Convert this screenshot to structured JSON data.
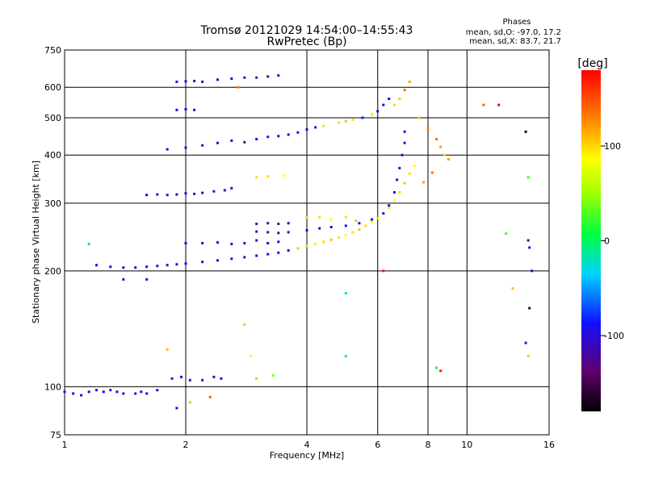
{
  "chart_data": {
    "type": "scatter",
    "title": "Tromsø 20121029 14:54:00–14:55:43",
    "subtitle": "RwPretec (Bp)",
    "xlabel": "Frequency [MHz]",
    "ylabel": "Stationary phase Virtual Height [km]",
    "x_scale": "log",
    "y_scale": "log",
    "xlim": [
      1,
      16
    ],
    "ylim": [
      75,
      750
    ],
    "x_ticks": [
      1,
      2,
      4,
      6,
      8,
      10,
      16
    ],
    "x_tick_labels": [
      "1",
      "2",
      "4",
      "6",
      "8",
      "10",
      "16"
    ],
    "y_ticks": [
      75,
      100,
      200,
      300,
      400,
      500,
      600,
      750
    ],
    "y_tick_labels": [
      "75",
      "100",
      "200",
      "300",
      "400",
      "500",
      "600",
      "750"
    ],
    "grid": true,
    "phase_box": {
      "title": "Phases",
      "line1": "mean, sd,O: -97.0, 17.2",
      "line2": "mean, sd,X: 83.7, 21.7"
    },
    "colorbar": {
      "label": "[deg]",
      "range": [
        -180,
        180
      ],
      "ticks": [
        100,
        0,
        -100
      ],
      "tick_labels": [
        "100",
        "0",
        "-100"
      ]
    },
    "series": [
      {
        "points": [
          [
            1.0,
            97,
            -100
          ],
          [
            1.05,
            96,
            -100
          ],
          [
            1.1,
            95,
            -100
          ],
          [
            1.15,
            97,
            -100
          ],
          [
            1.2,
            98,
            -100
          ],
          [
            1.25,
            97,
            -100
          ],
          [
            1.3,
            98,
            -100
          ],
          [
            1.35,
            97,
            -100
          ],
          [
            1.4,
            96,
            -100
          ],
          [
            1.5,
            96,
            -100
          ],
          [
            1.55,
            97,
            -100
          ],
          [
            1.6,
            96,
            -100
          ],
          [
            1.7,
            98,
            -100
          ],
          [
            1.85,
            105,
            -100
          ],
          [
            1.95,
            106,
            -100
          ],
          [
            2.05,
            104,
            -100
          ],
          [
            2.2,
            104,
            -100
          ],
          [
            2.35,
            106,
            -100
          ],
          [
            2.45,
            105,
            -100
          ]
        ]
      },
      {
        "points": [
          [
            1.2,
            207,
            -100
          ],
          [
            1.3,
            205,
            -100
          ],
          [
            1.4,
            204,
            -100
          ],
          [
            1.5,
            204,
            -100
          ],
          [
            1.6,
            205,
            -100
          ],
          [
            1.7,
            206,
            -100
          ],
          [
            1.8,
            207,
            -100
          ],
          [
            1.9,
            208,
            -100
          ],
          [
            2.0,
            209,
            -100
          ],
          [
            2.2,
            211,
            -100
          ],
          [
            2.4,
            213,
            -100
          ],
          [
            2.6,
            215,
            -100
          ],
          [
            2.8,
            217,
            -100
          ],
          [
            3.0,
            219,
            -100
          ],
          [
            3.2,
            221,
            -100
          ],
          [
            3.4,
            223,
            -95
          ],
          [
            3.6,
            226,
            -100
          ],
          [
            3.8,
            229,
            50
          ],
          [
            4.0,
            232,
            100
          ],
          [
            4.2,
            235,
            80
          ],
          [
            4.4,
            238,
            100
          ],
          [
            4.6,
            241,
            110
          ],
          [
            4.8,
            244,
            100
          ],
          [
            5.0,
            248,
            90
          ],
          [
            5.2,
            252,
            100
          ],
          [
            5.4,
            256,
            110
          ],
          [
            5.6,
            262,
            100
          ],
          [
            5.8,
            268,
            90
          ],
          [
            6.0,
            274,
            100
          ],
          [
            6.2,
            282,
            110
          ],
          [
            6.4,
            292,
            100
          ],
          [
            6.6,
            305,
            90
          ],
          [
            6.8,
            320,
            100
          ],
          [
            7.0,
            338,
            110
          ],
          [
            7.2,
            358,
            100
          ],
          [
            7.4,
            375,
            90
          ]
        ]
      },
      {
        "points": [
          [
            2.0,
            236,
            -100
          ],
          [
            2.2,
            236,
            -100
          ],
          [
            2.4,
            237,
            -100
          ],
          [
            2.6,
            235,
            -100
          ],
          [
            2.8,
            236,
            -100
          ],
          [
            3.0,
            240,
            -100
          ],
          [
            3.2,
            236,
            -100
          ],
          [
            3.4,
            238,
            -100
          ]
        ]
      },
      {
        "points": [
          [
            3.0,
            265,
            -120
          ],
          [
            3.2,
            266,
            -120
          ],
          [
            3.4,
            265,
            -120
          ],
          [
            3.6,
            266,
            -110
          ],
          [
            3.0,
            253,
            -120
          ],
          [
            3.2,
            252,
            -120
          ],
          [
            3.4,
            251,
            -110
          ],
          [
            3.6,
            252,
            -110
          ],
          [
            4.0,
            275,
            100
          ],
          [
            4.3,
            276,
            100
          ],
          [
            4.6,
            272,
            90
          ],
          [
            5.0,
            276,
            100
          ],
          [
            5.3,
            270,
            110
          ]
        ]
      },
      {
        "points": [
          [
            4.0,
            255,
            -100
          ],
          [
            4.3,
            258,
            -100
          ],
          [
            4.6,
            260,
            -100
          ],
          [
            5.0,
            262,
            -100
          ],
          [
            5.4,
            266,
            -100
          ],
          [
            5.8,
            272,
            -100
          ],
          [
            6.2,
            282,
            -100
          ],
          [
            6.4,
            296,
            -100
          ],
          [
            6.6,
            320,
            -100
          ],
          [
            6.7,
            345,
            -100
          ],
          [
            6.8,
            370,
            -100
          ],
          [
            6.9,
            400,
            -100
          ],
          [
            7.0,
            430,
            -100
          ],
          [
            7.0,
            460,
            -100
          ]
        ]
      },
      {
        "points": [
          [
            1.6,
            315,
            -100
          ],
          [
            1.7,
            316,
            -100
          ],
          [
            1.8,
            315,
            -100
          ],
          [
            1.9,
            316,
            -100
          ],
          [
            2.0,
            318,
            -100
          ],
          [
            2.1,
            317,
            -100
          ],
          [
            2.2,
            319,
            -100
          ],
          [
            2.35,
            322,
            -100
          ],
          [
            2.5,
            324,
            -100
          ],
          [
            2.6,
            328,
            -100
          ]
        ]
      },
      {
        "points": [
          [
            1.8,
            414,
            -100
          ],
          [
            2.0,
            418,
            -100
          ],
          [
            2.2,
            424,
            -100
          ],
          [
            2.4,
            430,
            -100
          ],
          [
            2.6,
            436,
            -100
          ],
          [
            2.8,
            432,
            -130
          ],
          [
            3.0,
            440,
            -110
          ],
          [
            3.2,
            446,
            -100
          ],
          [
            3.4,
            448,
            -110
          ],
          [
            3.6,
            452,
            -100
          ],
          [
            3.8,
            458,
            -100
          ],
          [
            4.0,
            466,
            -100
          ],
          [
            4.2,
            472,
            -100
          ],
          [
            4.4,
            476,
            100
          ],
          [
            4.8,
            486,
            100
          ],
          [
            5.0,
            490,
            110
          ],
          [
            5.2,
            494,
            100
          ],
          [
            5.5,
            500,
            -100
          ],
          [
            5.8,
            510,
            100
          ],
          [
            6.0,
            520,
            -100
          ],
          [
            6.2,
            540,
            -100
          ],
          [
            6.4,
            560,
            -100
          ]
        ]
      },
      {
        "points": [
          [
            1.9,
            524,
            -100
          ],
          [
            2.0,
            526,
            -100
          ],
          [
            2.1,
            524,
            -100
          ]
        ]
      },
      {
        "points": [
          [
            1.9,
            620,
            -100
          ],
          [
            2.0,
            622,
            -100
          ],
          [
            2.1,
            623,
            -100
          ],
          [
            2.2,
            620,
            -100
          ],
          [
            2.4,
            628,
            -100
          ],
          [
            2.6,
            632,
            -100
          ],
          [
            2.8,
            636,
            -110
          ],
          [
            3.0,
            636,
            -120
          ],
          [
            3.2,
            640,
            -130
          ],
          [
            3.4,
            644,
            -120
          ]
        ]
      },
      {
        "points": [
          [
            6.6,
            540,
            100
          ],
          [
            6.8,
            560,
            110
          ],
          [
            7.0,
            590,
            140
          ],
          [
            7.2,
            620,
            120
          ],
          [
            7.6,
            500,
            110
          ],
          [
            8.0,
            470,
            130
          ],
          [
            8.4,
            440,
            140
          ],
          [
            8.6,
            420,
            120
          ],
          [
            8.8,
            400,
            100
          ],
          [
            9.0,
            390,
            120
          ],
          [
            8.2,
            360,
            140
          ],
          [
            7.8,
            340,
            120
          ]
        ]
      },
      {
        "points": [
          [
            3.0,
            350,
            100
          ],
          [
            3.2,
            352,
            100
          ],
          [
            3.5,
            354,
            90
          ],
          [
            1.15,
            235,
            -30
          ],
          [
            2.7,
            600,
            130
          ],
          [
            5.0,
            175,
            -20
          ],
          [
            5.0,
            120,
            0
          ],
          [
            6.2,
            200,
            170
          ],
          [
            8.4,
            112,
            0
          ],
          [
            8.6,
            110,
            170
          ],
          [
            11.0,
            540,
            140
          ],
          [
            12.0,
            540,
            180
          ],
          [
            12.5,
            250,
            20
          ],
          [
            13.0,
            180,
            110
          ],
          [
            14.0,
            460,
            -170
          ],
          [
            14.2,
            350,
            20
          ],
          [
            14.2,
            240,
            -130
          ],
          [
            14.3,
            230,
            -110
          ],
          [
            14.3,
            160,
            -160
          ],
          [
            14.0,
            130,
            -100
          ],
          [
            14.2,
            120,
            110
          ],
          [
            14.5,
            200,
            -90
          ],
          [
            1.8,
            125,
            110
          ],
          [
            1.9,
            88,
            -100
          ],
          [
            2.05,
            91,
            40
          ],
          [
            2.3,
            94,
            140
          ],
          [
            3.0,
            105,
            110
          ],
          [
            3.3,
            107,
            40
          ],
          [
            2.8,
            145,
            110
          ],
          [
            2.9,
            120,
            90
          ],
          [
            1.6,
            190,
            -100
          ],
          [
            1.4,
            190,
            -100
          ]
        ]
      }
    ]
  }
}
